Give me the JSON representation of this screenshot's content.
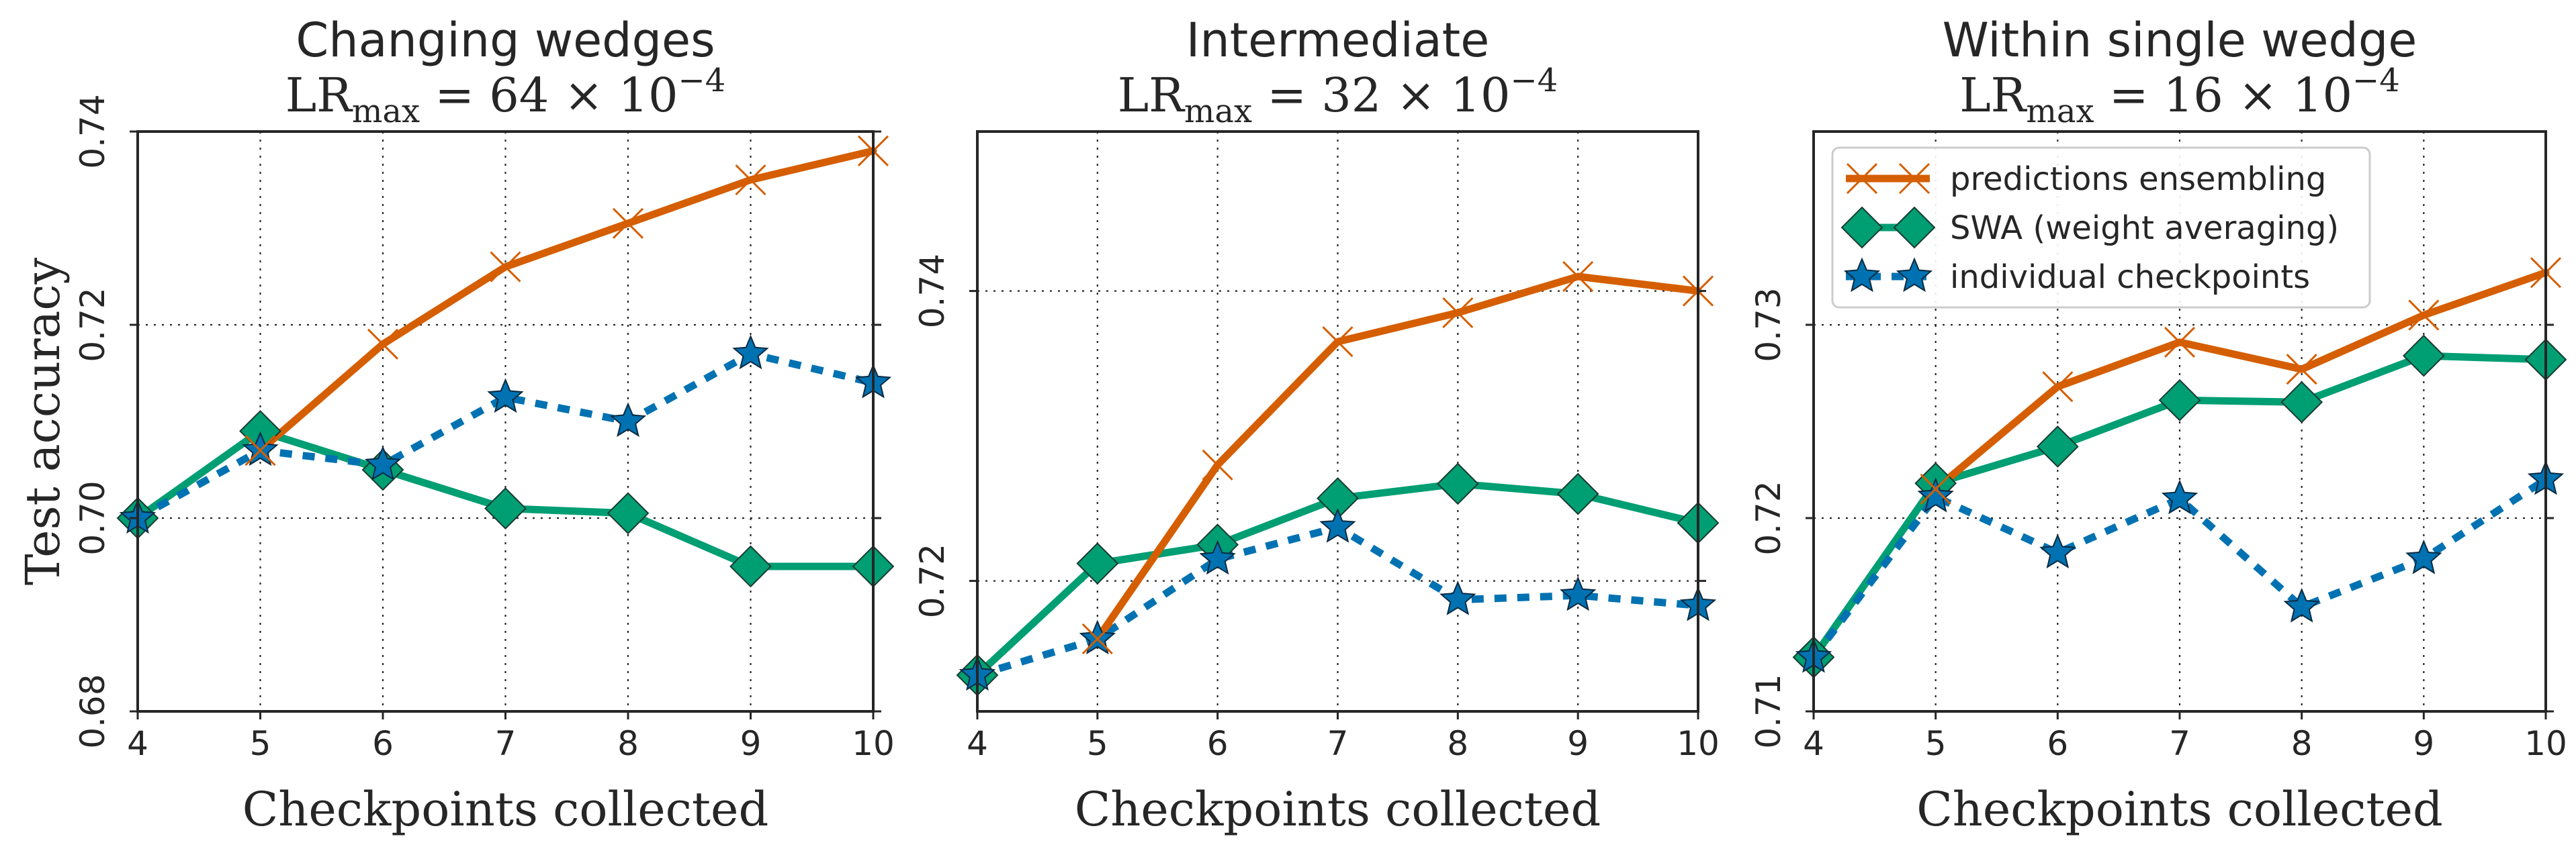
{
  "chart_data": [
    {
      "type": "line",
      "title": "Changing wedges",
      "subtitle": {
        "base": "LR",
        "sub": "max",
        "rest": " = 64 × 10",
        "exp": "−4"
      },
      "xlabel": "Checkpoints collected",
      "ylabel": "Test accuracy",
      "x": [
        4,
        5,
        6,
        7,
        8,
        9,
        10
      ],
      "xlim": [
        4,
        10
      ],
      "ylim": [
        0.68,
        0.74
      ],
      "xticks": [
        "4",
        "5",
        "6",
        "7",
        "8",
        "9",
        "10"
      ],
      "yticks": [
        {
          "v": 0.68,
          "label": "0.68"
        },
        {
          "v": 0.7,
          "label": "0.70"
        },
        {
          "v": 0.72,
          "label": "0.72"
        },
        {
          "v": 0.74,
          "label": "0.74"
        }
      ],
      "grid": true,
      "series": [
        {
          "name": "predictions ensembling",
          "key": "ens",
          "values": [
            null,
            0.707,
            0.718,
            0.726,
            0.7305,
            0.735,
            0.738
          ]
        },
        {
          "name": "SWA (weight averaging)",
          "key": "swa",
          "values": [
            0.7,
            0.709,
            0.705,
            0.701,
            0.7005,
            0.695,
            0.695
          ]
        },
        {
          "name": "individual checkpoints",
          "key": "ind",
          "values": [
            0.7,
            0.707,
            0.7055,
            0.7125,
            0.71,
            0.717,
            0.714
          ]
        }
      ]
    },
    {
      "type": "line",
      "title": "Intermediate",
      "subtitle": {
        "base": "LR",
        "sub": "max",
        "rest": " = 32 × 10",
        "exp": "−4"
      },
      "xlabel": "Checkpoints collected",
      "ylabel": "",
      "x": [
        4,
        5,
        6,
        7,
        8,
        9,
        10
      ],
      "xlim": [
        4,
        10
      ],
      "ylim": [
        0.711,
        0.751
      ],
      "xticks": [
        "4",
        "5",
        "6",
        "7",
        "8",
        "9",
        "10"
      ],
      "yticks": [
        {
          "v": 0.72,
          "label": "0.72"
        },
        {
          "v": 0.74,
          "label": "0.74"
        }
      ],
      "grid": true,
      "series": [
        {
          "name": "predictions ensembling",
          "key": "ens",
          "values": [
            null,
            0.716,
            0.728,
            0.7365,
            0.7385,
            0.741,
            0.74
          ]
        },
        {
          "name": "SWA (weight averaging)",
          "key": "swa",
          "values": [
            0.7135,
            0.7212,
            0.7225,
            0.7257,
            0.7267,
            0.726,
            0.724
          ]
        },
        {
          "name": "individual checkpoints",
          "key": "ind",
          "values": [
            0.7135,
            0.716,
            0.7215,
            0.7237,
            0.7187,
            0.719,
            0.7183
          ]
        }
      ]
    },
    {
      "type": "line",
      "title": "Within single wedge",
      "subtitle": {
        "base": "LR",
        "sub": "max",
        "rest": " = 16 × 10",
        "exp": "−4"
      },
      "xlabel": "Checkpoints collected",
      "ylabel": "",
      "x": [
        4,
        5,
        6,
        7,
        8,
        9,
        10
      ],
      "xlim": [
        4,
        10
      ],
      "ylim": [
        0.71,
        0.74
      ],
      "xticks": [
        "4",
        "5",
        "6",
        "7",
        "8",
        "9",
        "10"
      ],
      "yticks": [
        {
          "v": 0.71,
          "label": "0.71"
        },
        {
          "v": 0.72,
          "label": "0.72"
        },
        {
          "v": 0.73,
          "label": "0.73"
        }
      ],
      "grid": true,
      "legend": {
        "position": "top-left"
      },
      "series": [
        {
          "name": "predictions ensembling",
          "key": "ens",
          "values": [
            null,
            0.7215,
            0.7268,
            0.7291,
            0.7277,
            0.7305,
            0.7327
          ]
        },
        {
          "name": "SWA (weight averaging)",
          "key": "swa",
          "values": [
            0.7128,
            0.7218,
            0.7237,
            0.7261,
            0.726,
            0.7284,
            0.7282
          ]
        },
        {
          "name": "individual checkpoints",
          "key": "ind",
          "values": [
            0.7128,
            0.7211,
            0.7182,
            0.721,
            0.7154,
            0.7179,
            0.722
          ]
        }
      ]
    }
  ],
  "colors": {
    "ens": "#d55e00",
    "swa": "#009e73",
    "ind": "#0072b2",
    "axis": "#262626",
    "grid": "#262626"
  }
}
